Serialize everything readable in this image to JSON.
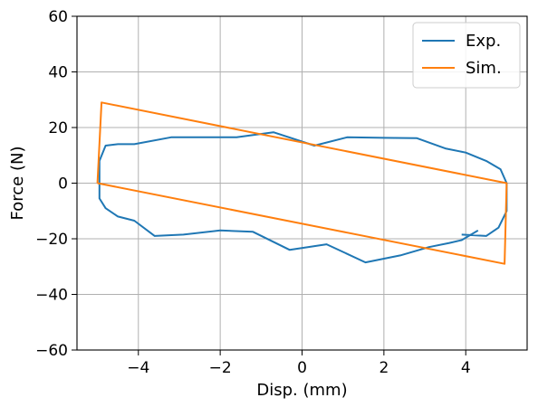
{
  "chart_data": {
    "type": "line",
    "title": "",
    "xlabel": "Disp. (mm)",
    "ylabel": "Force (N)",
    "xlim": [
      -5.5,
      5.5
    ],
    "ylim": [
      -60,
      60
    ],
    "xticks": [
      -4,
      -2,
      0,
      2,
      4
    ],
    "xtick_labels": [
      "−4",
      "−2",
      "0",
      "2",
      "4"
    ],
    "yticks": [
      -60,
      -40,
      -20,
      0,
      20,
      40,
      60
    ],
    "ytick_labels": [
      "−60",
      "−40",
      "−20",
      "0",
      "20",
      "40",
      "60"
    ],
    "grid": true,
    "legend_position": "top-right",
    "series": [
      {
        "name": "Exp.",
        "color": "#1f77b4",
        "x": [
          4.3,
          3.9,
          3.6,
          3.1,
          2.4,
          1.55,
          0.6,
          -0.3,
          -1.2,
          -2.0,
          -2.9,
          -3.6,
          -4.1,
          -4.5,
          -4.8,
          -4.95,
          -4.95,
          -4.8,
          -4.5,
          -4.1,
          -3.2,
          -2.0,
          -1.6,
          -0.7,
          0.3,
          1.1,
          2.0,
          2.8,
          3.5,
          4.0,
          4.5,
          4.85,
          5.0,
          5.0,
          5.0,
          4.8,
          4.5,
          3.9
        ],
        "y": [
          -17,
          -20.5,
          -21.5,
          -23,
          -26,
          -28.5,
          -22,
          -24,
          -17.5,
          -17,
          -18.5,
          -19,
          -13.5,
          -12,
          -9,
          -5.5,
          8,
          13.5,
          14,
          14,
          16.5,
          16.5,
          16.5,
          18.3,
          13.5,
          16.5,
          16.3,
          16.2,
          12.5,
          11,
          8,
          5,
          0,
          -5,
          -10,
          -16,
          -19,
          -18.5
        ]
      },
      {
        "name": "Sim.",
        "color": "#ff7f0e",
        "x": [
          -5.0,
          -4.9,
          5.0,
          4.95,
          -5.0
        ],
        "y": [
          0,
          29,
          0,
          -29,
          0
        ]
      }
    ]
  }
}
